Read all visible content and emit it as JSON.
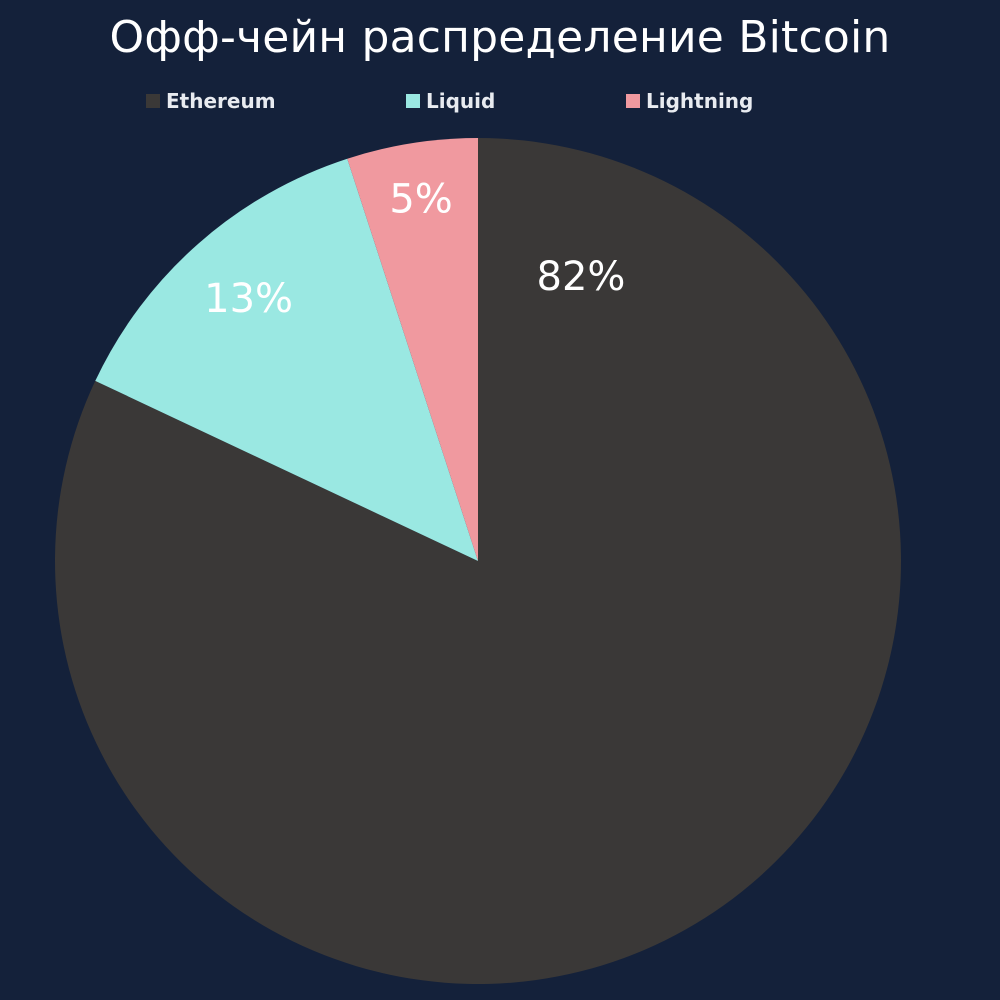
{
  "chart_data": {
    "type": "pie",
    "title": "Офф-чейн распределение Bitcoin",
    "legend_position": "top",
    "slices": [
      {
        "name": "Ethereum",
        "value": 82,
        "label": "82%",
        "color": "#3a3837"
      },
      {
        "name": "Liquid",
        "value": 13,
        "label": "13%",
        "color": "#9ae8e2"
      },
      {
        "name": "Lightning",
        "value": 5,
        "label": "5%",
        "color": "#f0999f"
      }
    ]
  },
  "background_color": "#14213a"
}
